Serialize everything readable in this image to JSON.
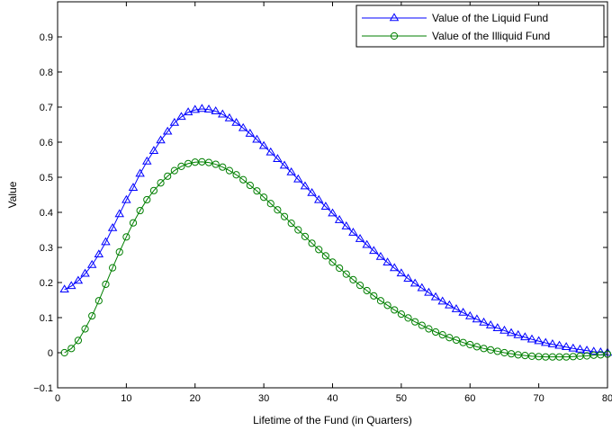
{
  "chart_data": {
    "type": "line",
    "title": "",
    "xlabel": "Lifetime of the Fund (in Quarters)",
    "ylabel": "Value",
    "xlim": [
      0,
      80
    ],
    "ylim": [
      -0.1,
      1.0
    ],
    "xticks": [
      0,
      10,
      20,
      30,
      40,
      50,
      60,
      70,
      80
    ],
    "yticks": [
      -0.1,
      0,
      0.1,
      0.2,
      0.3,
      0.4,
      0.5,
      0.6,
      0.7,
      0.8,
      0.9
    ],
    "xtick_labels": [
      "0",
      "10",
      "20",
      "30",
      "40",
      "50",
      "60",
      "70",
      "80"
    ],
    "ytick_labels": [
      "−0.1",
      "0",
      "0.1",
      "0.2",
      "0.3",
      "0.4",
      "0.5",
      "0.6",
      "0.7",
      "0.8",
      "0.9"
    ],
    "grid": false,
    "legend_position": "top-right",
    "x": [
      1,
      2,
      3,
      4,
      5,
      6,
      7,
      8,
      9,
      10,
      11,
      12,
      13,
      14,
      15,
      16,
      17,
      18,
      19,
      20,
      21,
      22,
      23,
      24,
      25,
      26,
      27,
      28,
      29,
      30,
      31,
      32,
      33,
      34,
      35,
      36,
      37,
      38,
      39,
      40,
      41,
      42,
      43,
      44,
      45,
      46,
      47,
      48,
      49,
      50,
      51,
      52,
      53,
      54,
      55,
      56,
      57,
      58,
      59,
      60,
      61,
      62,
      63,
      64,
      65,
      66,
      67,
      68,
      69,
      70,
      71,
      72,
      73,
      74,
      75,
      76,
      77,
      78,
      79,
      80
    ],
    "series": [
      {
        "name": "Value of the Liquid Fund",
        "color": "#0000ff",
        "marker": "triangle",
        "values": [
          0.18,
          0.19,
          0.205,
          0.225,
          0.25,
          0.28,
          0.315,
          0.355,
          0.395,
          0.435,
          0.47,
          0.51,
          0.545,
          0.575,
          0.605,
          0.63,
          0.655,
          0.672,
          0.685,
          0.692,
          0.695,
          0.693,
          0.688,
          0.679,
          0.668,
          0.655,
          0.64,
          0.624,
          0.607,
          0.589,
          0.571,
          0.552,
          0.533,
          0.514,
          0.494,
          0.474,
          0.455,
          0.435,
          0.416,
          0.397,
          0.378,
          0.36,
          0.342,
          0.324,
          0.307,
          0.29,
          0.273,
          0.257,
          0.241,
          0.226,
          0.211,
          0.197,
          0.184,
          0.171,
          0.158,
          0.146,
          0.135,
          0.124,
          0.114,
          0.104,
          0.095,
          0.086,
          0.078,
          0.07,
          0.063,
          0.056,
          0.05,
          0.044,
          0.038,
          0.033,
          0.028,
          0.024,
          0.02,
          0.016,
          0.012,
          0.009,
          0.006,
          0.003,
          0.001,
          0.0
        ]
      },
      {
        "name": "Value of the Illiquid Fund",
        "color": "#007f00",
        "marker": "circle",
        "values": [
          0.0,
          0.012,
          0.035,
          0.068,
          0.105,
          0.148,
          0.195,
          0.242,
          0.287,
          0.33,
          0.37,
          0.405,
          0.436,
          0.462,
          0.484,
          0.503,
          0.519,
          0.531,
          0.539,
          0.543,
          0.544,
          0.542,
          0.537,
          0.529,
          0.519,
          0.507,
          0.493,
          0.477,
          0.461,
          0.443,
          0.425,
          0.407,
          0.388,
          0.369,
          0.35,
          0.331,
          0.312,
          0.294,
          0.276,
          0.258,
          0.241,
          0.224,
          0.208,
          0.192,
          0.177,
          0.162,
          0.148,
          0.135,
          0.122,
          0.11,
          0.099,
          0.088,
          0.078,
          0.068,
          0.059,
          0.051,
          0.043,
          0.036,
          0.029,
          0.023,
          0.017,
          0.012,
          0.008,
          0.004,
          0.0,
          -0.003,
          -0.006,
          -0.008,
          -0.01,
          -0.011,
          -0.012,
          -0.012,
          -0.012,
          -0.012,
          -0.011,
          -0.01,
          -0.009,
          -0.007,
          -0.006,
          -0.004
        ]
      }
    ]
  }
}
